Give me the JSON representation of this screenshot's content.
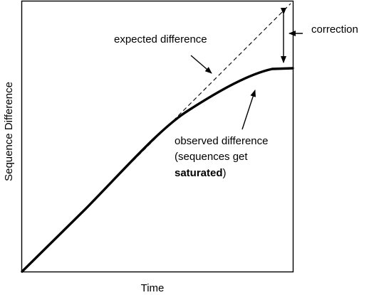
{
  "axes": {
    "xlabel": "Time",
    "ylabel": "Sequence Difference"
  },
  "labels": {
    "expected": "expected difference",
    "correction": "correction",
    "observed_line1": "observed difference",
    "observed_line2": "(sequences get",
    "observed_line3_bold": "saturated",
    "observed_line3_end": ")"
  },
  "styles": {
    "line_color": "#000000",
    "background": "#ffffff"
  }
}
